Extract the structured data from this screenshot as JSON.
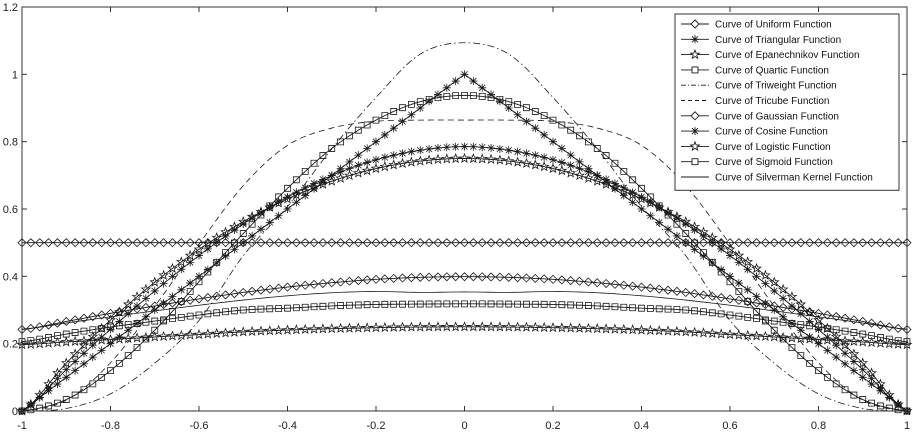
{
  "chart_data": {
    "type": "line",
    "title": "",
    "xlabel": "",
    "ylabel": "",
    "xlim": [
      -1,
      1
    ],
    "ylim": [
      0,
      1.2
    ],
    "x_ticks": [
      "-1",
      "-0.8",
      "-0.6",
      "-0.4",
      "-0.2",
      "0",
      "0.2",
      "0.4",
      "0.6",
      "0.8",
      "1"
    ],
    "y_ticks": [
      "0",
      "0.2",
      "0.4",
      "0.6",
      "0.8",
      "1",
      "1.2"
    ],
    "grid": false,
    "legend_position": "top-right",
    "x": [
      -1,
      -0.9,
      -0.8,
      -0.7,
      -0.6,
      -0.5,
      -0.4,
      -0.3,
      -0.2,
      -0.1,
      0,
      0.1,
      0.2,
      0.3,
      0.4,
      0.5,
      0.6,
      0.7,
      0.8,
      0.9,
      1
    ],
    "series": [
      {
        "name": "Curve of Uniform Function",
        "marker": "diamond",
        "dash": "solid",
        "values": [
          0.5,
          0.5,
          0.5,
          0.5,
          0.5,
          0.5,
          0.5,
          0.5,
          0.5,
          0.5,
          0.5,
          0.5,
          0.5,
          0.5,
          0.5,
          0.5,
          0.5,
          0.5,
          0.5,
          0.5,
          0.5
        ]
      },
      {
        "name": "Curve of Triangular Function",
        "marker": "asterisk",
        "dash": "solid",
        "values": [
          0,
          0.1,
          0.2,
          0.3,
          0.4,
          0.5,
          0.6,
          0.7,
          0.8,
          0.9,
          1,
          0.9,
          0.8,
          0.7,
          0.6,
          0.5,
          0.4,
          0.3,
          0.2,
          0.1,
          0
        ]
      },
      {
        "name": "Curve of Epanechnikov Function",
        "marker": "star",
        "dash": "solid",
        "values": [
          0,
          0.1425,
          0.27,
          0.3825,
          0.48,
          0.5625,
          0.63,
          0.6825,
          0.72,
          0.7425,
          0.75,
          0.7425,
          0.72,
          0.6825,
          0.63,
          0.5625,
          0.48,
          0.3825,
          0.27,
          0.1425,
          0
        ]
      },
      {
        "name": "Curve of Quartic Function",
        "marker": "square",
        "dash": "solid",
        "values": [
          0,
          0.034,
          0.12,
          0.24,
          0.384,
          0.527,
          0.6615,
          0.7799,
          0.864,
          0.9189,
          0.9375,
          0.9189,
          0.864,
          0.7799,
          0.6615,
          0.527,
          0.384,
          0.24,
          0.12,
          0.034,
          0
        ]
      },
      {
        "name": "Curve of Triweight Function",
        "marker": "none",
        "dash": "dashdot",
        "values": [
          0,
          0.0075,
          0.0508,
          0.1419,
          0.2687,
          0.4614,
          0.6074,
          0.7786,
          0.9313,
          1.0602,
          1.0938,
          1.0602,
          0.9313,
          0.7786,
          0.6074,
          0.4614,
          0.2687,
          0.1419,
          0.0508,
          0.0075,
          0
        ]
      },
      {
        "name": "Curve of Tricube Function",
        "marker": "none",
        "dash": "dashed",
        "values": [
          0,
          0.0317,
          0.1433,
          0.3109,
          0.4957,
          0.6694,
          0.7892,
          0.8404,
          0.8606,
          0.864,
          0.8642,
          0.864,
          0.8606,
          0.8404,
          0.7892,
          0.6694,
          0.4957,
          0.3109,
          0.1433,
          0.0317,
          0
        ]
      },
      {
        "name": "Curve of Gaussian Function",
        "marker": "diamond",
        "dash": "solid",
        "values": [
          0.242,
          0.266,
          0.29,
          0.312,
          0.333,
          0.352,
          0.368,
          0.381,
          0.391,
          0.397,
          0.399,
          0.397,
          0.391,
          0.381,
          0.368,
          0.352,
          0.333,
          0.312,
          0.29,
          0.266,
          0.242
        ]
      },
      {
        "name": "Curve of Cosine Function",
        "marker": "asterisk",
        "dash": "solid",
        "values": [
          0,
          0.1229,
          0.2427,
          0.3566,
          0.4617,
          0.5554,
          0.6354,
          0.6995,
          0.7462,
          0.7745,
          0.7854,
          0.7745,
          0.7462,
          0.6995,
          0.6354,
          0.5554,
          0.4617,
          0.3566,
          0.2427,
          0.1229,
          0
        ]
      },
      {
        "name": "Curve of Logistic Function",
        "marker": "star",
        "dash": "solid",
        "values": [
          0.197,
          0.205,
          0.212,
          0.22,
          0.227,
          0.235,
          0.2403,
          0.2445,
          0.2475,
          0.2494,
          0.25,
          0.2494,
          0.2475,
          0.2445,
          0.2403,
          0.235,
          0.227,
          0.22,
          0.212,
          0.205,
          0.197
        ]
      },
      {
        "name": "Curve of Sigmoid Function",
        "marker": "square",
        "dash": "solid",
        "values": [
          0.2059,
          0.2286,
          0.2493,
          0.2671,
          0.2851,
          0.2999,
          0.3054,
          0.3122,
          0.3164,
          0.3176,
          0.3183,
          0.3176,
          0.3164,
          0.3122,
          0.3054,
          0.2999,
          0.2851,
          0.2671,
          0.2493,
          0.2286,
          0.2059
        ]
      },
      {
        "name": "Curve of Silverman Kernel Function",
        "marker": "none",
        "dash": "solid",
        "values": [
          0.243,
          0.2614,
          0.2796,
          0.2973,
          0.3141,
          0.3295,
          0.3422,
          0.3512,
          0.3549,
          0.3523,
          0.3536,
          0.3523,
          0.3549,
          0.3512,
          0.3422,
          0.3295,
          0.3141,
          0.2973,
          0.2796,
          0.2614,
          0.243
        ]
      }
    ]
  }
}
